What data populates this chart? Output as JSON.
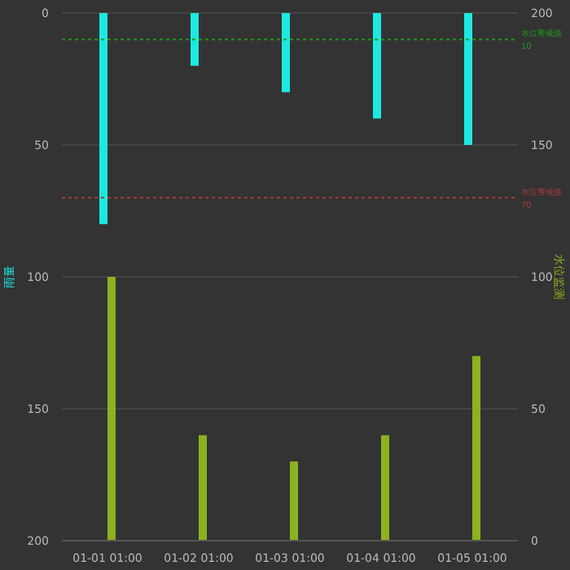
{
  "chart_data": {
    "type": "bar",
    "ylabel": "雨量",
    "y2label": "水位监测",
    "categories": [
      "01-01 01:00",
      "01-02 01:00",
      "01-03 01:00",
      "01-04 01:00",
      "01-05 01:00"
    ],
    "series": [
      {
        "color": "#1de9e0",
        "values": [
          80,
          20,
          30,
          40,
          50
        ]
      },
      {
        "color": "#8cb221",
        "axis": "y2",
        "values": [
          100,
          40,
          30,
          40,
          70
        ]
      }
    ],
    "ylim": [
      200,
      0
    ],
    "yticks": [
      0,
      50,
      100,
      150,
      200
    ],
    "y2lim": [
      0,
      200
    ],
    "y2ticks": [
      0,
      50,
      100,
      150,
      200
    ],
    "ref_lines": [
      {
        "axis": "y",
        "value": 10,
        "label": "水位警戒值",
        "color": "#1f9a1f",
        "line_style": "dotted"
      },
      {
        "axis": "y",
        "value": 70,
        "label": "水位警戒值",
        "color": "#a83a3a",
        "line_style": "dotted"
      }
    ],
    "annotations": [
      "10",
      "70"
    ],
    "grid": "y",
    "legend": false
  }
}
